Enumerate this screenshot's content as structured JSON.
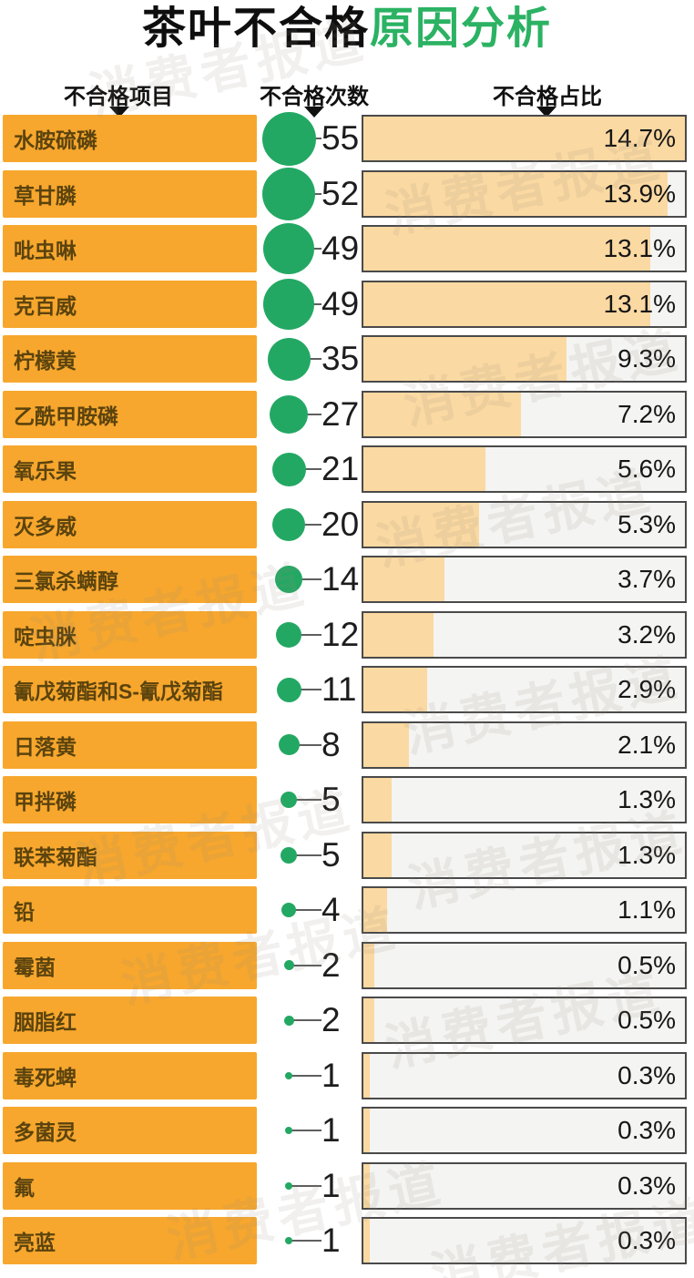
{
  "title": {
    "prefix": "茶叶不合格",
    "highlight": "原因分析"
  },
  "column_headers": {
    "item": "不合格项目",
    "count": "不合格次数",
    "share": "不合格占比"
  },
  "watermark_text": "消费者报道",
  "accent_colors": {
    "orange": "#f7a72d",
    "bar_fill": "#fbd9a2",
    "green": "#23a863",
    "title_green": "#2bb263"
  },
  "chart_data": {
    "type": "bar",
    "title": "茶叶不合格原因分析",
    "orientation": "horizontal",
    "grid": false,
    "legend_position": "none",
    "percent_axis_max": 14.7,
    "categories": [
      "水胺硫磷",
      "草甘膦",
      "吡虫啉",
      "克百威",
      "柠檬黄",
      "乙酰甲胺磷",
      "氧乐果",
      "灭多威",
      "三氯杀螨醇",
      "啶虫脒",
      "氰戊菊酯和S-氰戊菊酯",
      "日落黄",
      "甲拌磷",
      "联苯菊酯",
      "铅",
      "霉菌",
      "胭脂红",
      "毒死蜱",
      "多菌灵",
      "氟",
      "亮蓝"
    ],
    "series": [
      {
        "name": "不合格次数",
        "values": [
          55,
          52,
          49,
          49,
          35,
          27,
          21,
          20,
          14,
          12,
          11,
          8,
          5,
          5,
          4,
          2,
          2,
          1,
          1,
          1,
          1
        ]
      },
      {
        "name": "不合格占比(%)",
        "values": [
          14.7,
          13.9,
          13.1,
          13.1,
          9.3,
          7.2,
          5.6,
          5.3,
          3.7,
          3.2,
          2.9,
          2.1,
          1.3,
          1.3,
          1.1,
          0.5,
          0.5,
          0.3,
          0.3,
          0.3,
          0.3
        ]
      }
    ]
  }
}
